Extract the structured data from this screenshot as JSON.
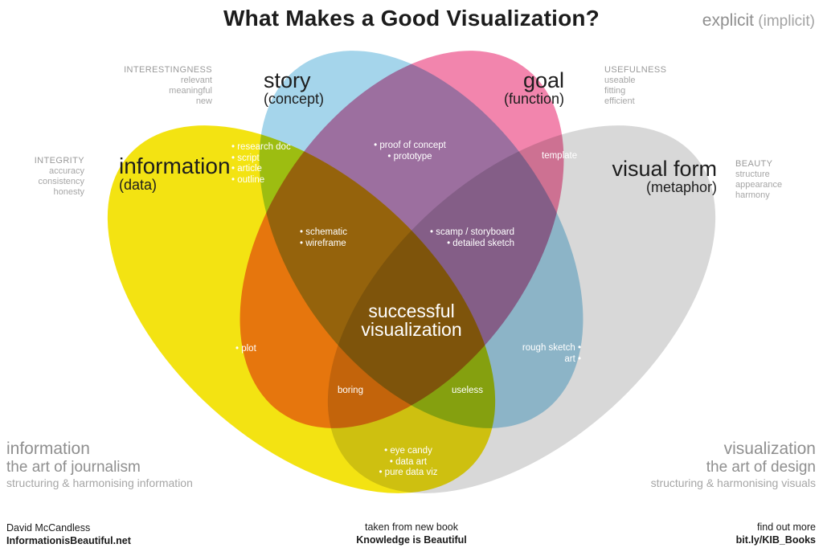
{
  "title": "What Makes a Good Visualization?",
  "legend": {
    "explicit": "explicit",
    "implicit": " (implicit)"
  },
  "sets": {
    "information": {
      "label": "information",
      "sub": "(data)",
      "color": "#f3e312"
    },
    "story": {
      "label": "story",
      "sub": "(concept)",
      "color": "#a5d5eb"
    },
    "goal": {
      "label": "goal",
      "sub": "(function)",
      "color": "#f285ad"
    },
    "visual_form": {
      "label": "visual form",
      "sub": "(metaphor)",
      "color": "#d8d8d8"
    }
  },
  "qualities": {
    "interestingness": {
      "name": "INTERESTINGNESS",
      "items": [
        "relevant",
        "meaningful",
        "new"
      ]
    },
    "usefulness": {
      "name": "USEFULNESS",
      "items": [
        "useable",
        "fitting",
        "efficient"
      ]
    },
    "integrity": {
      "name": "INTEGRITY",
      "items": [
        "accuracy",
        "consistency",
        "honesty"
      ]
    },
    "beauty": {
      "name": "BEAUTY",
      "items": [
        "structure",
        "appearance",
        "harmony"
      ]
    }
  },
  "intersections": {
    "story_info": [
      "• research doc",
      "• script",
      "• article",
      "• outline"
    ],
    "story_goal": [
      "• proof of concept",
      "• prototype"
    ],
    "goal_form": [
      "template"
    ],
    "info_story_goal": [
      "• schematic",
      "• wireframe"
    ],
    "story_goal_form": [
      "• scamp / storyboard",
      "• detailed sketch"
    ],
    "center": [
      "successful",
      "visualization"
    ],
    "info_goal": [
      "• plot"
    ],
    "story_form": [
      "rough sketch •",
      "art •"
    ],
    "info_goal_form": [
      "boring"
    ],
    "info_story_form": [
      "useless"
    ],
    "info_form": [
      "• eye candy",
      "• data art",
      "• pure data viz"
    ]
  },
  "corners": {
    "bottom_left": {
      "title": "information",
      "subtitle": "the art of journalism",
      "desc": "structuring & harmonising information"
    },
    "bottom_right": {
      "title": "visualization",
      "subtitle": "the art of design",
      "desc": "structuring & harmonising visuals"
    }
  },
  "footer": {
    "author_name": "David McCandless",
    "author_site": "InformationisBeautiful.net",
    "book_note": "taken from new book",
    "book_title": "Knowledge is Beautiful",
    "more_label": "find out more",
    "more_link": "bit.ly/KIB_Books"
  }
}
